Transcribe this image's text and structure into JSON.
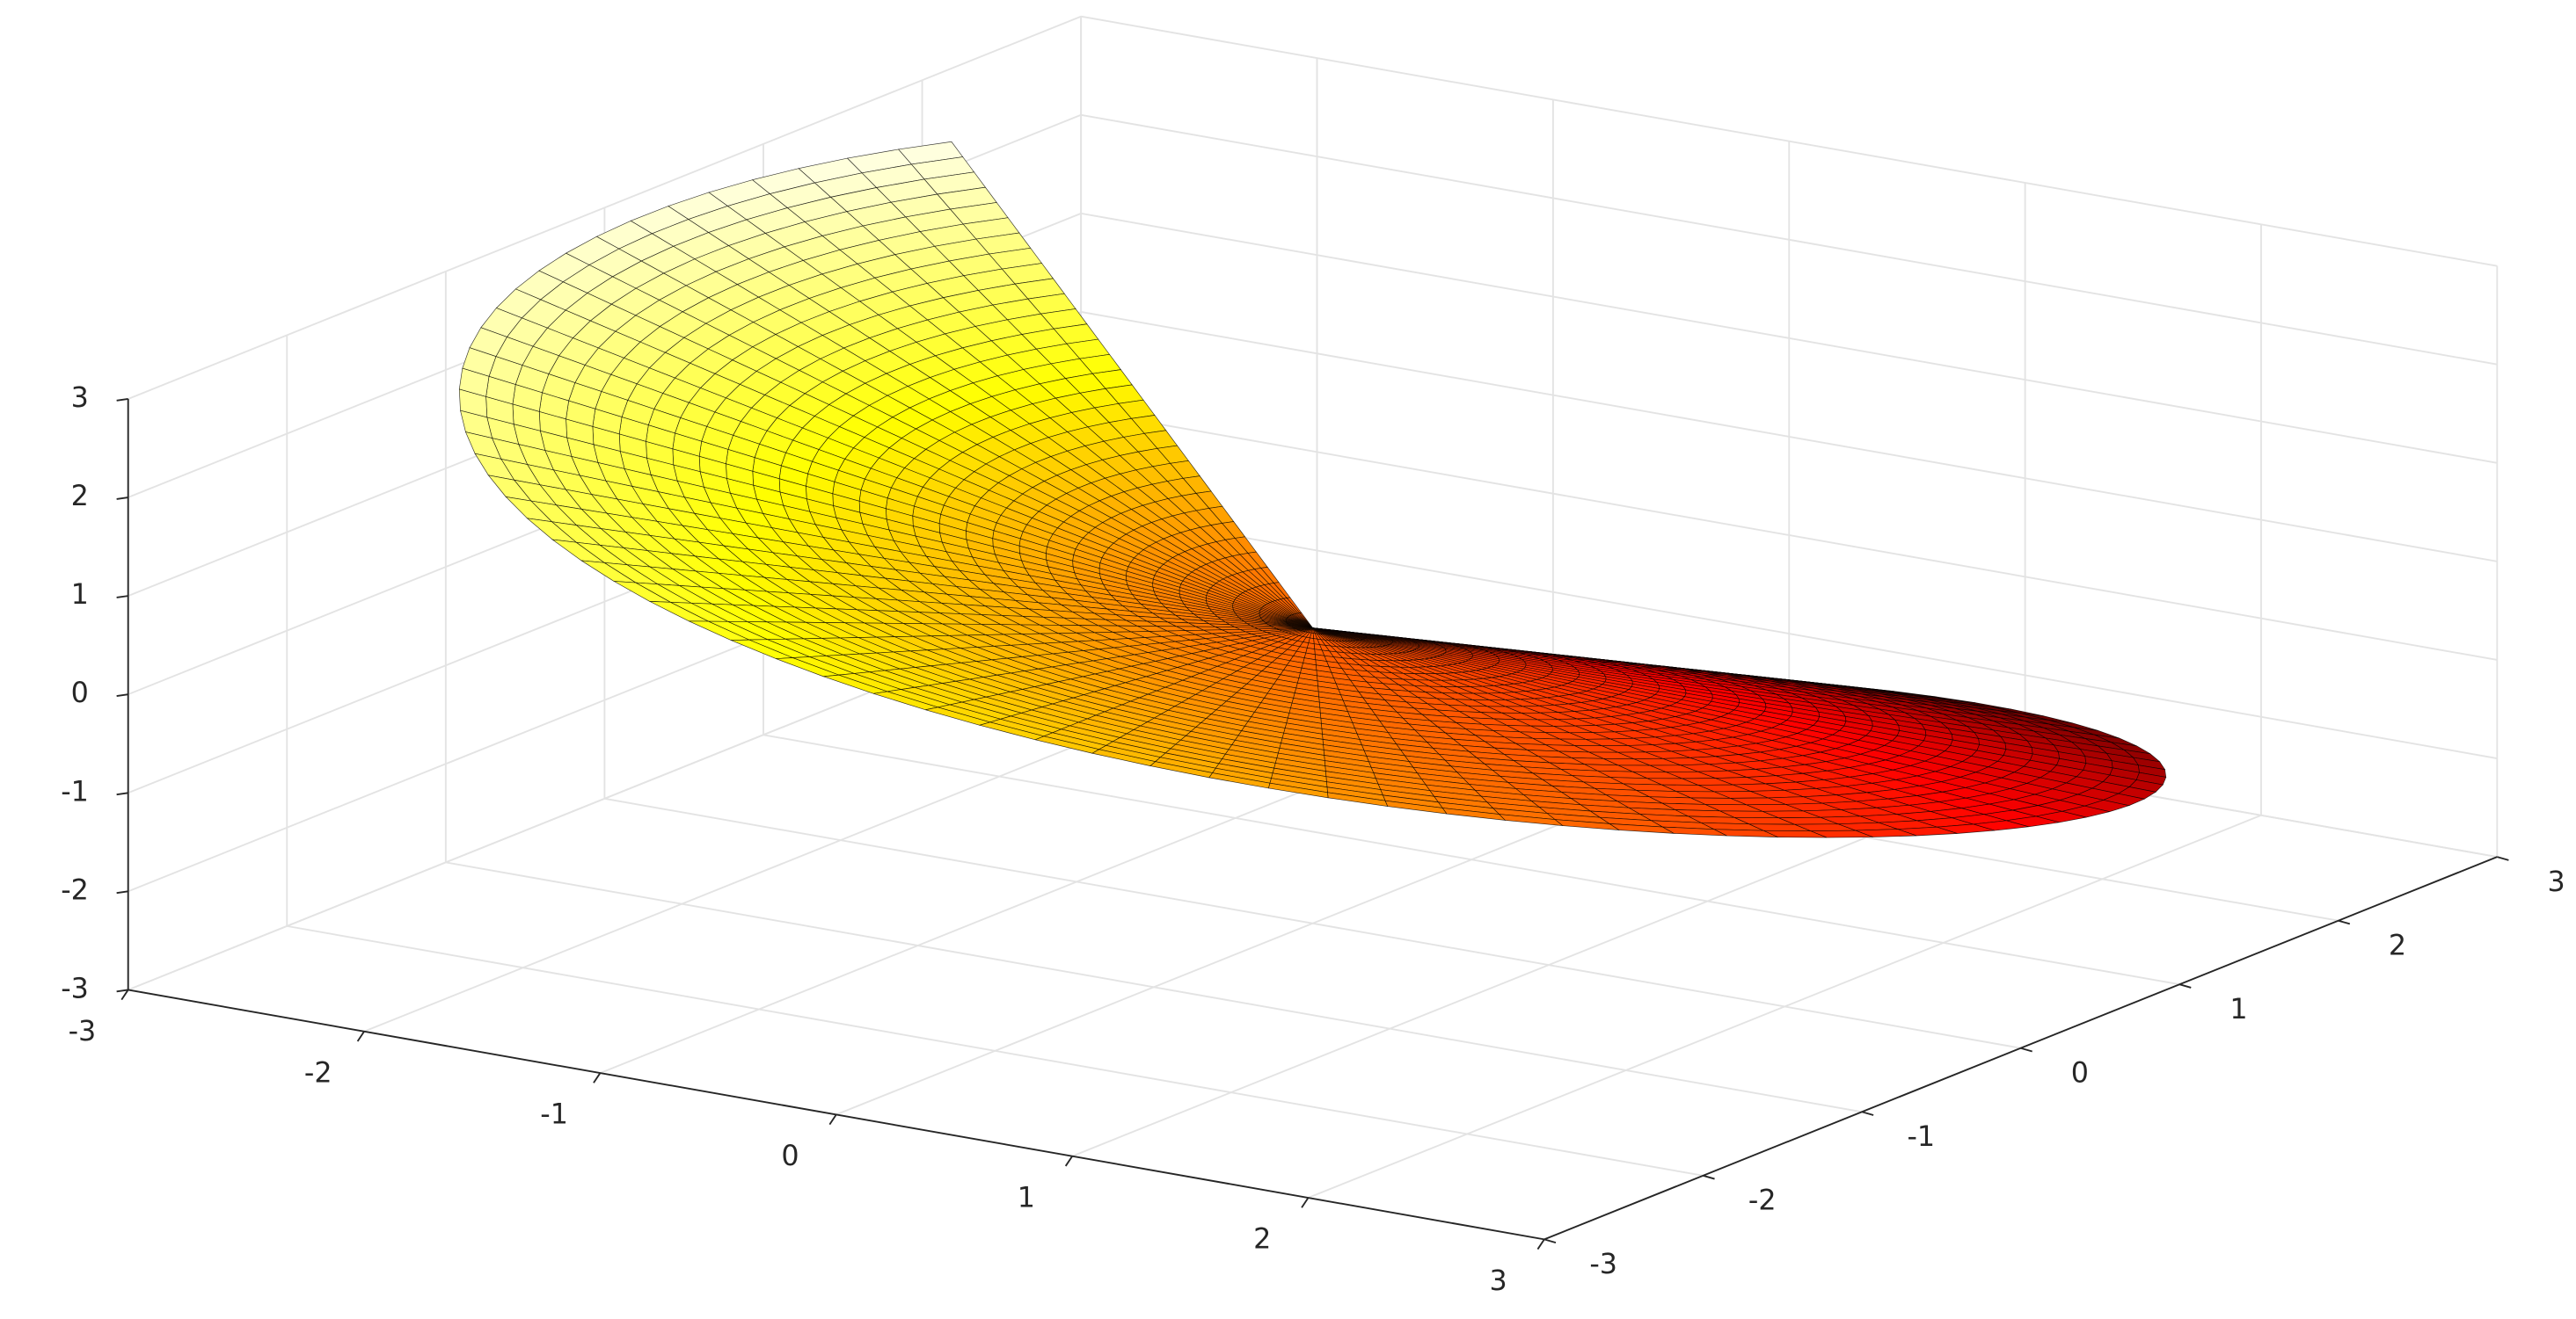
{
  "chart_data": {
    "type": "surface",
    "colormap": "hot",
    "grid": true,
    "edge_color": "#000000",
    "xlim": [
      -3,
      3
    ],
    "ylim": [
      -3,
      3
    ],
    "zlim": [
      -3,
      3
    ],
    "xticks": [
      -3,
      -2,
      -1,
      0,
      1,
      2,
      3
    ],
    "yticks": [
      -3,
      -2,
      -1,
      0,
      1,
      2,
      3
    ],
    "zticks": [
      -3,
      -2,
      -1,
      0,
      1,
      2,
      3
    ]
  }
}
